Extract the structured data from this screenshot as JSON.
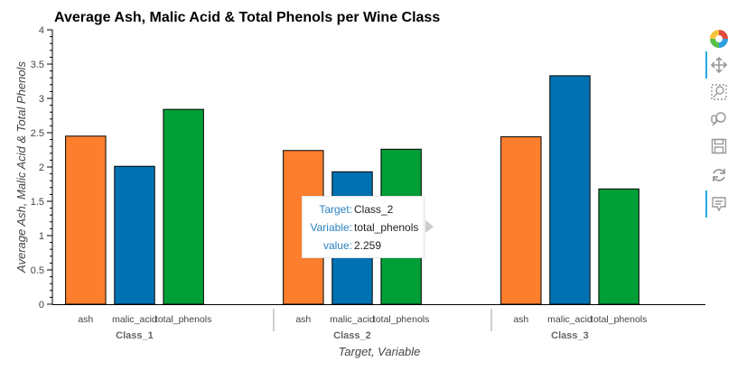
{
  "chart_data": {
    "type": "bar",
    "title": "Average Ash, Malic Acid & Total Phenols per Wine Class",
    "xlabel": "Target, Variable",
    "ylabel": "Average Ash, Malic Acid & Total Phenols",
    "ylim": [
      0,
      4
    ],
    "yticks": [
      "0",
      "0.5",
      "1",
      "1.5",
      "2",
      "2.5",
      "3",
      "3.5",
      "4"
    ],
    "groups": [
      "Class_1",
      "Class_2",
      "Class_3"
    ],
    "categories": [
      "ash",
      "malic_acid",
      "total_phenols"
    ],
    "series": [
      {
        "name": "ash",
        "color": "#fd7f2e",
        "values": [
          2.45,
          2.24,
          2.44
        ]
      },
      {
        "name": "malic_acid",
        "color": "#0072b2",
        "values": [
          2.01,
          1.93,
          3.33
        ]
      },
      {
        "name": "total_phenols",
        "color": "#009e37",
        "values": [
          2.84,
          2.259,
          1.68
        ]
      }
    ],
    "grid": false,
    "legend": "none"
  },
  "tooltip": {
    "rows": [
      {
        "key": "Target:",
        "value": "Class_2"
      },
      {
        "key": "Variable:",
        "value": "total_phenols"
      },
      {
        "key": "value:",
        "value": "2.259"
      }
    ]
  },
  "toolbar": {
    "tools": [
      "bokeh-logo-icon",
      "pan-icon",
      "box-zoom-icon",
      "wheel-zoom-icon",
      "save-icon",
      "reset-icon",
      "hover-icon"
    ]
  }
}
